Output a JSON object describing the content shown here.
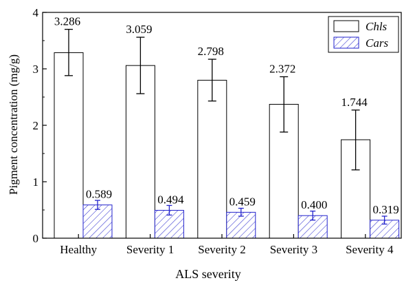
{
  "chart_data": {
    "type": "bar",
    "title": "",
    "xlabel": "ALS severity",
    "ylabel": "Pigment concentration (mg/g)",
    "categories": [
      "Healthy",
      "Severity 1",
      "Severity 2",
      "Severity 3",
      "Severity 4"
    ],
    "ylim": [
      0,
      4
    ],
    "yticks": [
      0,
      1,
      2,
      3,
      4
    ],
    "grid": false,
    "legend_position": "top-right",
    "series": [
      {
        "name": "Chls",
        "values": [
          3.286,
          3.059,
          2.798,
          2.372,
          1.744
        ],
        "labels": [
          "3.286",
          "3.059",
          "2.798",
          "2.372",
          "1.744"
        ],
        "error_low": [
          2.88,
          2.56,
          2.43,
          1.88,
          1.21
        ],
        "error_high": [
          3.7,
          3.56,
          3.17,
          2.86,
          2.27
        ],
        "fill": "#ffffff",
        "stroke": "#000000",
        "errorbar_color": "#000000",
        "pattern": "none"
      },
      {
        "name": "Cars",
        "values": [
          0.589,
          0.494,
          0.459,
          0.4,
          0.319
        ],
        "labels": [
          "0.589",
          "0.494",
          "0.459",
          "0.400",
          "0.319"
        ],
        "error_low": [
          0.51,
          0.41,
          0.39,
          0.32,
          0.25
        ],
        "error_high": [
          0.67,
          0.58,
          0.53,
          0.48,
          0.39
        ],
        "fill": "#ffffff",
        "stroke": "#2222cc",
        "errorbar_color": "#2222cc",
        "pattern": "diagonal-hatch"
      }
    ]
  }
}
